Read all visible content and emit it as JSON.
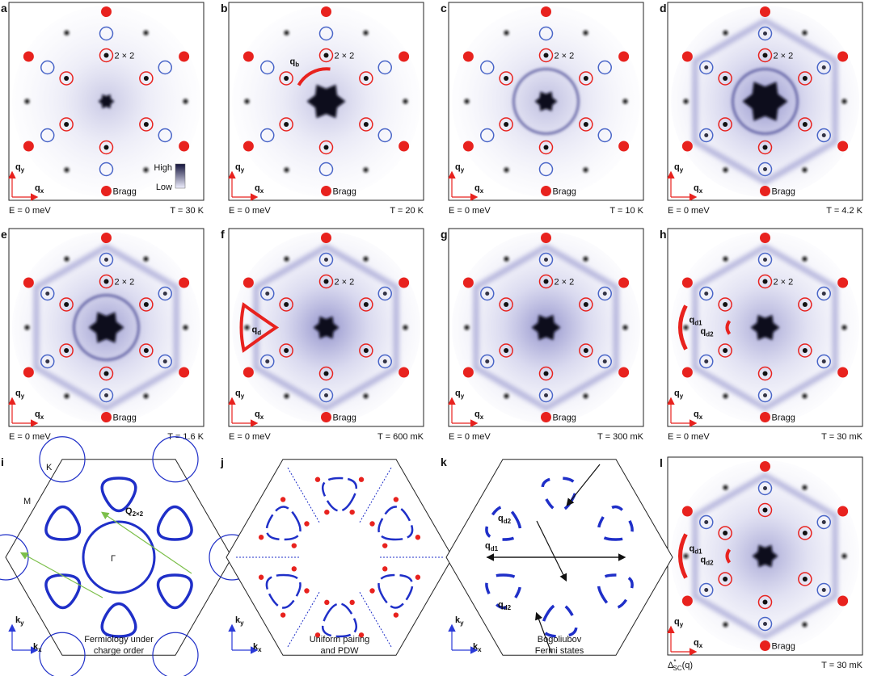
{
  "panels": [
    {
      "letter": "a",
      "tag": "2 × 2",
      "bragg": "Bragg",
      "axis_y": {
        "base": "q",
        "sub": "y"
      },
      "axis_x": {
        "base": "q",
        "sub": "x"
      },
      "energy": "E = 0 meV",
      "temperature": "T = 30 K",
      "colorbar": {
        "high": "High",
        "low": "Low"
      }
    },
    {
      "letter": "b",
      "tag": "2 × 2",
      "bragg": "Bragg",
      "axis_y": {
        "base": "q",
        "sub": "y"
      },
      "axis_x": {
        "base": "q",
        "sub": "x"
      },
      "energy": "E = 0 meV",
      "temperature": "T = 20 K",
      "annotations": [
        {
          "base": "q",
          "sub": "b"
        }
      ]
    },
    {
      "letter": "c",
      "tag": "2 × 2",
      "bragg": "Bragg",
      "axis_y": {
        "base": "q",
        "sub": "y"
      },
      "axis_x": {
        "base": "q",
        "sub": "x"
      },
      "energy": "E = 0 meV",
      "temperature": "T = 10 K"
    },
    {
      "letter": "d",
      "tag": "2 × 2",
      "tag_color": "#e8221e",
      "bragg": "Bragg",
      "axis_y": {
        "base": "q",
        "sub": "y"
      },
      "axis_x": {
        "base": "q",
        "sub": "x"
      },
      "energy": "E = 0 meV",
      "temperature": "T = 4.2 K"
    },
    {
      "letter": "e",
      "tag": "2 × 2",
      "bragg": "Bragg",
      "axis_y": {
        "base": "q",
        "sub": "y"
      },
      "axis_x": {
        "base": "q",
        "sub": "x"
      },
      "energy": "E = 0 meV",
      "temperature": "T = 1.6 K"
    },
    {
      "letter": "f",
      "tag": "2 × 2",
      "bragg": "Bragg",
      "axis_y": {
        "base": "q",
        "sub": "y"
      },
      "axis_x": {
        "base": "q",
        "sub": "x"
      },
      "energy": "E = 0 meV",
      "temperature": "T = 600 mK",
      "annotations": [
        {
          "base": "q",
          "sub": "d"
        }
      ]
    },
    {
      "letter": "g",
      "tag": "2 × 2",
      "bragg": "Bragg",
      "axis_y": {
        "base": "q",
        "sub": "y"
      },
      "axis_x": {
        "base": "q",
        "sub": "x"
      },
      "energy": "E = 0 meV",
      "temperature": "T = 300 mK"
    },
    {
      "letter": "h",
      "tag": "2 × 2",
      "bragg": "Bragg",
      "axis_y": {
        "base": "q",
        "sub": "y"
      },
      "axis_x": {
        "base": "q",
        "sub": "x"
      },
      "energy": "E = 0 meV",
      "temperature": "T = 30 mK",
      "annotations": [
        {
          "base": "q",
          "sub": "d1"
        },
        {
          "base": "q",
          "sub": "d2"
        }
      ]
    },
    {
      "letter": "l",
      "bragg": "Bragg",
      "axis_y": {
        "base": "q",
        "sub": "y"
      },
      "axis_x": {
        "base": "q",
        "sub": "x"
      },
      "energy": {
        "base": "Δ",
        "sup": "*",
        "sub": "SC",
        "tail": "(q)"
      },
      "temperature": "T = 30 mK",
      "annotations": [
        {
          "base": "q",
          "sub": "d1"
        },
        {
          "base": "q",
          "sub": "d2"
        }
      ]
    }
  ],
  "diagrams": [
    {
      "letter": "i",
      "axis_y": {
        "base": "k",
        "sub": "y"
      },
      "axis_x": {
        "base": "k",
        "sub": "x"
      },
      "caption": [
        "Fermiology under",
        "charge order"
      ],
      "labels": [
        {
          "base": "K"
        },
        {
          "base": "M"
        },
        {
          "base": "Q",
          "sub": "2×2"
        },
        {
          "base": "Γ"
        }
      ]
    },
    {
      "letter": "j",
      "axis_y": {
        "base": "k",
        "sub": "y"
      },
      "axis_x": {
        "base": "k",
        "sub": "x"
      },
      "caption": [
        "Uniform pairing",
        "and PDW"
      ]
    },
    {
      "letter": "k",
      "axis_y": {
        "base": "k",
        "sub": "y"
      },
      "axis_x": {
        "base": "k",
        "sub": "x"
      },
      "caption": [
        "Bogoliubov",
        "Fermi states"
      ],
      "labels": [
        {
          "base": "q",
          "sub": "d2"
        },
        {
          "base": "q",
          "sub": "d1"
        },
        {
          "base": "q",
          "sub": "d2"
        }
      ]
    }
  ]
}
